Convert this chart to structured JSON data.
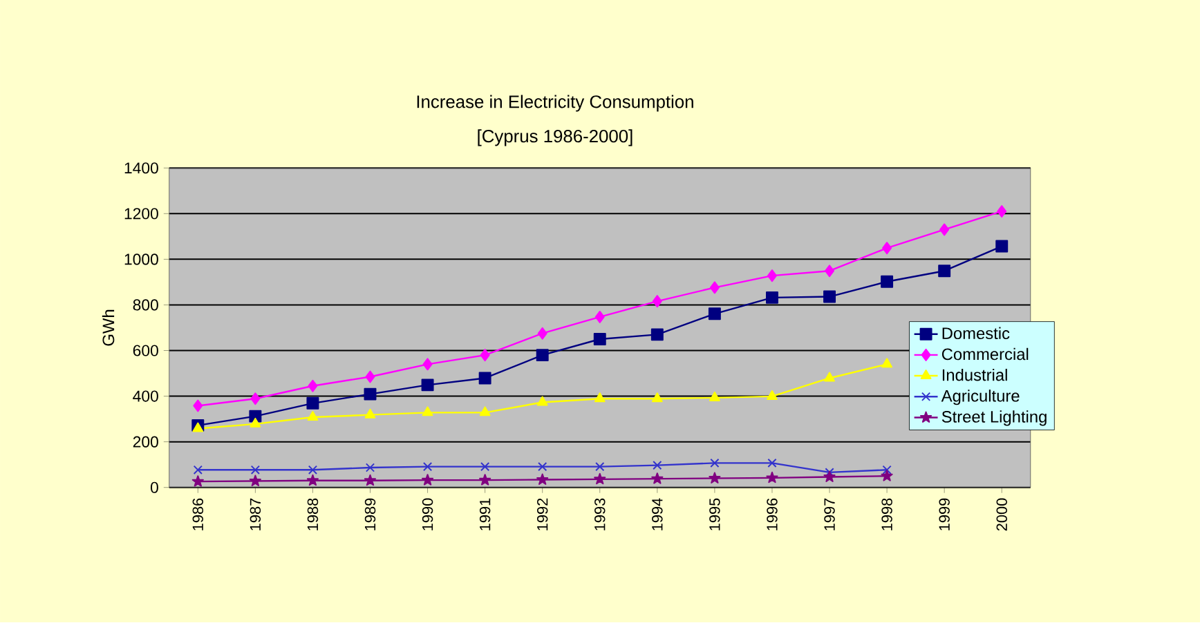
{
  "chart_data": {
    "type": "line",
    "title": "Increase in Electricity Consumption",
    "subtitle": "[Cyprus 1986-2000]",
    "ylabel": "GWh",
    "categories": [
      "1986",
      "1987",
      "1988",
      "1989",
      "1990",
      "1991",
      "1992",
      "1993",
      "1994",
      "1995",
      "1996",
      "1997",
      "1998",
      "1999",
      "2000"
    ],
    "series": [
      {
        "name": "Domestic",
        "color": "#000080",
        "marker": "square",
        "values": [
          272,
          312,
          369,
          409,
          449,
          479,
          580,
          650,
          670,
          761,
          832,
          836,
          902,
          949,
          1057
        ]
      },
      {
        "name": "Commercial",
        "color": "#ff00ff",
        "marker": "diamond",
        "values": [
          358,
          389,
          445,
          485,
          540,
          580,
          675,
          747,
          816,
          876,
          928,
          949,
          1049,
          1130,
          1210
        ]
      },
      {
        "name": "Industrial",
        "color": "#ffff00",
        "marker": "triangle",
        "values": [
          258,
          278,
          308,
          318,
          328,
          328,
          373,
          389,
          389,
          393,
          399,
          479,
          540,
          null,
          null
        ]
      },
      {
        "name": "Agriculture",
        "color": "#3333cc",
        "marker": "cross",
        "values": [
          77,
          77,
          77,
          87,
          91,
          91,
          91,
          91,
          97,
          107,
          107,
          66,
          77,
          null,
          null
        ]
      },
      {
        "name": "Street Lighting",
        "color": "#800080",
        "marker": "star",
        "values": [
          26,
          28,
          30,
          30,
          32,
          32,
          34,
          36,
          38,
          40,
          42,
          46,
          50,
          null,
          null
        ]
      }
    ],
    "ylim": [
      0,
      1400
    ],
    "yticks": [
      0,
      200,
      400,
      600,
      800,
      1000,
      1200,
      1400
    ],
    "grid": "y",
    "legend": "right",
    "line_style": "solid"
  }
}
